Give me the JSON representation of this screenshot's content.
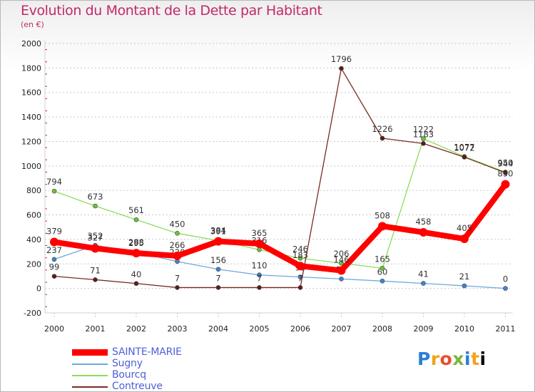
{
  "header": {
    "title": "Evolution du Montant de la Dette par Habitant",
    "subtitle": "(en €)"
  },
  "logo": {
    "text": "Proxiti"
  },
  "colors": {
    "title": "#c0296b",
    "legend_text": "#4f5fd7",
    "grid": "#c8c8c8",
    "axis_text": "#222222"
  },
  "chart_data": {
    "type": "line",
    "title": "Evolution du Montant de la Dette par Habitant",
    "subtitle": "(en €)",
    "xlabel": "",
    "ylabel": "",
    "x": [
      "2000",
      "2001",
      "2002",
      "2003",
      "2004",
      "2005",
      "2006",
      "2007",
      "2008",
      "2009",
      "2010",
      "2011"
    ],
    "ylim": [
      -200,
      2000
    ],
    "yticks": [
      -200,
      0,
      200,
      400,
      600,
      800,
      1000,
      1200,
      1400,
      1600,
      1800,
      2000
    ],
    "grid": "horizontal dashed",
    "legend_position": "bottom-left",
    "series": [
      {
        "name": "SAINTE-MARIE",
        "color": "#ff0000",
        "values": [
          379,
          327,
          288,
          266,
          384,
          365,
          183,
          146,
          508,
          458,
          405,
          850
        ],
        "labels": [
          "379",
          "327",
          "288",
          "266",
          "384",
          "365",
          "183",
          "146",
          "508",
          "458",
          "405",
          "850"
        ]
      },
      {
        "name": "Sugny",
        "color": "#6fa8dc",
        "values": [
          237,
          352,
          295,
          220,
          156,
          110,
          93,
          77,
          60,
          41,
          21,
          0
        ],
        "labels": [
          "237",
          "352",
          "295",
          "220",
          "156",
          "110",
          "93",
          "77",
          "60",
          "41",
          "21",
          "0"
        ]
      },
      {
        "name": "Bourcq",
        "color": "#8ddc5a",
        "values": [
          794,
          673,
          561,
          450,
          391,
          316,
          246,
          206,
          165,
          1222,
          1077,
          950
        ],
        "labels": [
          "794",
          "673",
          "561",
          "450",
          "391",
          "316",
          "246",
          "206",
          "165",
          "1222",
          "1077",
          "950"
        ]
      },
      {
        "name": "Contreuve",
        "color": "#7b2a22",
        "values": [
          99,
          71,
          40,
          7,
          7,
          7,
          7,
          1796,
          1226,
          1183,
          1072,
          944
        ],
        "labels": [
          "99",
          "71",
          "40",
          "7",
          "7",
          "7",
          "7",
          "1796",
          "1226",
          "1183",
          "1072",
          "944"
        ]
      }
    ]
  }
}
